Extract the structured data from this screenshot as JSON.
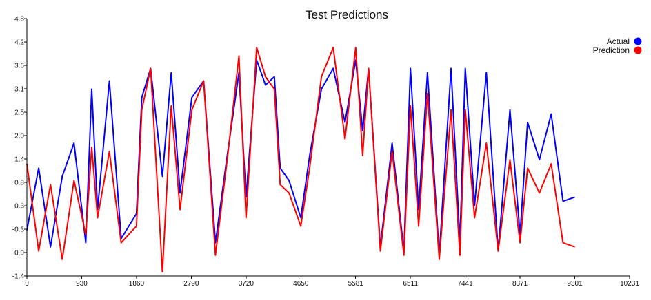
{
  "chart_data": {
    "type": "line",
    "title": "Test Predictions",
    "xlabel": "",
    "ylabel": "",
    "xlim": [
      0,
      10231
    ],
    "ylim": [
      -1.4,
      4.8
    ],
    "x_ticks": [
      "0",
      "930",
      "1860",
      "2790",
      "3720",
      "4650",
      "5581",
      "6511",
      "7441",
      "8371",
      "9301",
      "10231"
    ],
    "y_ticks": [
      "-1.4",
      "-0.9",
      "-0.3",
      "0.3",
      "0.8",
      "1.4",
      "2.0",
      "2.5",
      "3.1",
      "3.6",
      "4.2",
      "4.8"
    ],
    "legend_position": "top-right",
    "grid": false,
    "series": [
      {
        "name": "Actual",
        "color": "#0000ff",
        "x": [
          0,
          200,
          400,
          600,
          800,
          1000,
          1100,
          1200,
          1400,
          1600,
          1860,
          1950,
          2100,
          2300,
          2450,
          2600,
          2800,
          3000,
          3200,
          3400,
          3600,
          3720,
          3900,
          4050,
          4200,
          4300,
          4450,
          4650,
          4800,
          5000,
          5200,
          5400,
          5581,
          5700,
          5800,
          6000,
          6200,
          6400,
          6511,
          6650,
          6800,
          7000,
          7200,
          7350,
          7441,
          7600,
          7800,
          8000,
          8200,
          8371,
          8500,
          8700,
          8900,
          9100,
          9301
        ],
        "values": [
          -0.3,
          1.2,
          -0.7,
          1.0,
          1.8,
          -0.6,
          3.1,
          0.2,
          3.3,
          -0.5,
          0.1,
          2.9,
          3.6,
          1.0,
          3.5,
          0.6,
          2.9,
          3.3,
          -0.6,
          1.5,
          3.5,
          0.5,
          3.8,
          3.2,
          3.4,
          1.2,
          0.9,
          0.0,
          1.5,
          3.1,
          3.6,
          2.3,
          3.8,
          2.1,
          3.6,
          -0.7,
          1.8,
          -0.8,
          3.6,
          0.2,
          3.5,
          -0.9,
          3.6,
          -0.6,
          3.6,
          0.3,
          3.5,
          -0.8,
          2.6,
          -0.4,
          2.3,
          1.4,
          2.5,
          0.4,
          0.5
        ]
      },
      {
        "name": "Prediction",
        "color": "#ff0000",
        "x": [
          0,
          200,
          400,
          600,
          800,
          1000,
          1100,
          1200,
          1400,
          1600,
          1860,
          1950,
          2100,
          2300,
          2450,
          2600,
          2800,
          3000,
          3200,
          3400,
          3600,
          3720,
          3900,
          4050,
          4200,
          4300,
          4450,
          4650,
          4800,
          5000,
          5200,
          5400,
          5581,
          5700,
          5800,
          6000,
          6200,
          6400,
          6511,
          6650,
          6800,
          7000,
          7200,
          7350,
          7441,
          7600,
          7800,
          8000,
          8200,
          8371,
          8500,
          8700,
          8900,
          9100,
          9301
        ],
        "values": [
          1.3,
          -0.8,
          0.8,
          -1.0,
          0.9,
          -0.4,
          1.7,
          0.0,
          1.6,
          -0.6,
          -0.2,
          2.6,
          3.6,
          -1.3,
          2.7,
          0.2,
          2.6,
          3.3,
          -0.9,
          1.4,
          3.9,
          0.0,
          4.1,
          3.4,
          3.1,
          0.8,
          0.6,
          -0.2,
          1.2,
          3.4,
          4.1,
          1.9,
          4.1,
          1.5,
          3.6,
          -0.8,
          1.6,
          -0.9,
          2.7,
          -0.2,
          3.0,
          -1.0,
          2.6,
          -0.9,
          2.6,
          0.0,
          1.8,
          -0.8,
          1.4,
          -0.6,
          1.2,
          0.6,
          1.3,
          -0.6,
          -0.7
        ]
      }
    ]
  }
}
